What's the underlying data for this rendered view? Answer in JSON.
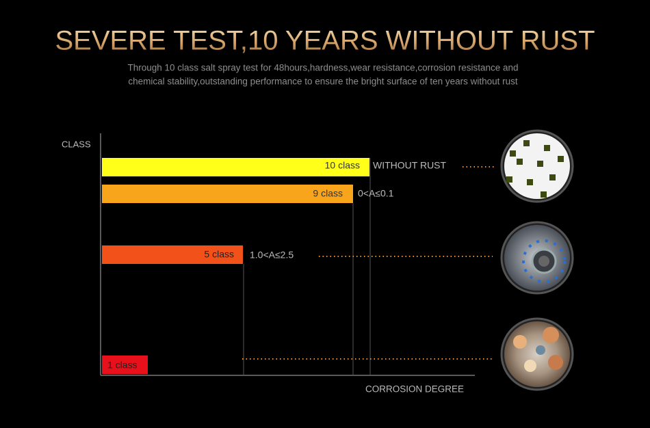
{
  "header": {
    "title": "SEVERE TEST,10 YEARS WITHOUT RUST",
    "subtitle": [
      "Through 10 class salt spray test for 48hours,hardness,wear resistance,corrosion resistance and",
      "chemical stability,outstanding performance to ensure the bright surface of ten years without rust"
    ]
  },
  "graphic": {
    "y_axis_label": "CLASS",
    "x_axis_label": "CORROSION DEGREE",
    "bars": [
      {
        "label": "10 class",
        "note": "WITHOUT RUST"
      },
      {
        "label": "9 class",
        "note": "0<A≤0.1"
      },
      {
        "label": "5 class",
        "note": "1.0<A≤2.5"
      },
      {
        "label": "1 class"
      }
    ]
  }
}
